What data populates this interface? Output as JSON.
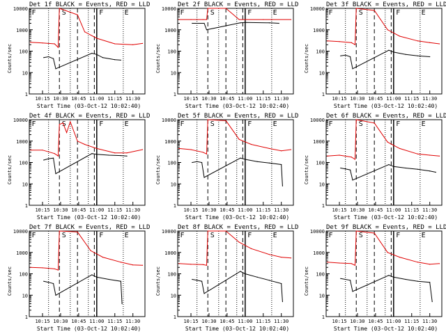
{
  "colors": {
    "events": "#000000",
    "lld": "#e00000",
    "axis": "#000000"
  },
  "chart_data": [
    {
      "type": "line",
      "title": "Det 1f BLACK = Events, RED = LLD",
      "xlabel": "Start Time (03-Oct-12 10:02:40)",
      "ylabel": "Counts/sec",
      "xlim": [
        "10:04",
        "11:40"
      ],
      "ylim": [
        1,
        10000
      ],
      "yscale": "log",
      "x_ticks": [
        "10:15",
        "10:30",
        "10:45",
        "11:00",
        "11:15",
        "11:30"
      ],
      "y_ticks": [
        "1",
        "10",
        "100",
        "1000",
        "10000"
      ],
      "markers": [
        "F",
        "S",
        "F",
        "E"
      ],
      "series": [
        {
          "name": "Events",
          "x": [
            "10:16",
            "10:20",
            "10:24",
            "10:26",
            "10:56",
            "11:00",
            "11:05",
            "11:15",
            "11:20"
          ],
          "values": [
            50,
            55,
            45,
            15,
            80,
            70,
            50,
            40,
            38
          ]
        },
        {
          "name": "LLD",
          "x": [
            "10:05",
            "10:15",
            "10:25",
            "10:28",
            "10:29",
            "10:44",
            "10:50",
            "11:00",
            "11:15",
            "11:30",
            "11:38"
          ],
          "values": [
            260,
            240,
            220,
            150,
            10000,
            5000,
            800,
            400,
            220,
            200,
            230
          ]
        }
      ]
    },
    {
      "type": "line",
      "title": "Det 2f BLACK = Events, RED = LLD",
      "xlabel": "Start Time (03-Oct-12 10:02:40)",
      "ylabel": "Counts/sec",
      "xlim": [
        "10:04",
        "11:40"
      ],
      "ylim": [
        1,
        10000
      ],
      "yscale": "log",
      "x_ticks": [
        "10:15",
        "10:30",
        "10:45",
        "11:00",
        "11:15",
        "11:30"
      ],
      "y_ticks": [
        "1",
        "10",
        "100",
        "1000",
        "10000"
      ],
      "markers": [
        "F",
        "S",
        "F",
        "E"
      ],
      "series": [
        {
          "name": "Events",
          "x": [
            "10:16",
            "10:20",
            "10:26",
            "10:28",
            "10:56",
            "11:00",
            "11:20",
            "11:28"
          ],
          "values": [
            2000,
            2000,
            2000,
            1000,
            2100,
            2200,
            2100,
            2000
          ]
        },
        {
          "name": "LLD",
          "x": [
            "10:05",
            "10:15",
            "10:25",
            "10:28",
            "10:29",
            "10:44",
            "10:55",
            "11:15",
            "11:38"
          ],
          "values": [
            3000,
            3000,
            3000,
            3000,
            10000,
            10000,
            3000,
            3000,
            3000
          ]
        }
      ]
    },
    {
      "type": "line",
      "title": "Det 3f BLACK = Events, RED = LLD",
      "xlabel": "Start Time (03-Oct-12 10:02:40)",
      "ylabel": "Counts/sec",
      "xlim": [
        "10:04",
        "11:40"
      ],
      "ylim": [
        1,
        10000
      ],
      "yscale": "log",
      "x_ticks": [
        "10:15",
        "10:30",
        "10:45",
        "11:00",
        "11:15",
        "11:30"
      ],
      "y_ticks": [
        "1",
        "10",
        "100",
        "1000",
        "10000"
      ],
      "markers": [
        "F",
        "S",
        "F",
        "E"
      ],
      "series": [
        {
          "name": "Events",
          "x": [
            "10:16",
            "10:20",
            "10:24",
            "10:26",
            "10:56",
            "11:00",
            "11:10",
            "11:20",
            "11:30"
          ],
          "values": [
            60,
            65,
            55,
            15,
            110,
            90,
            70,
            60,
            55
          ]
        },
        {
          "name": "LLD",
          "x": [
            "10:05",
            "10:15",
            "10:25",
            "10:28",
            "10:29",
            "10:44",
            "10:55",
            "11:05",
            "11:20",
            "11:30",
            "11:38"
          ],
          "values": [
            300,
            280,
            250,
            200,
            10000,
            8000,
            1000,
            500,
            300,
            250,
            220
          ]
        }
      ]
    },
    {
      "type": "line",
      "title": "Det 4f BLACK = Events, RED = LLD",
      "xlabel": "Start Time (03-Oct-12 10:02:40)",
      "ylabel": "Counts/sec",
      "xlim": [
        "10:04",
        "11:40"
      ],
      "ylim": [
        1,
        10000
      ],
      "yscale": "log",
      "x_ticks": [
        "10:15",
        "10:30",
        "10:45",
        "11:00",
        "11:15",
        "11:30"
      ],
      "y_ticks": [
        "1",
        "10",
        "100",
        "1000",
        "10000"
      ],
      "markers": [
        "F",
        "S",
        "F",
        "E"
      ],
      "series": [
        {
          "name": "Events",
          "x": [
            "10:16",
            "10:20",
            "10:24",
            "10:26",
            "10:56",
            "11:00",
            "11:10",
            "11:20",
            "11:25"
          ],
          "values": [
            130,
            150,
            160,
            30,
            260,
            240,
            220,
            210,
            200
          ]
        },
        {
          "name": "LLD",
          "x": [
            "10:05",
            "10:15",
            "10:25",
            "10:28",
            "10:29",
            "10:32",
            "10:35",
            "10:38",
            "10:44",
            "10:50",
            "11:00",
            "11:15",
            "11:25",
            "11:38"
          ],
          "values": [
            380,
            380,
            260,
            200,
            6000,
            7000,
            2500,
            8000,
            1000,
            700,
            450,
            280,
            280,
            400
          ]
        }
      ]
    },
    {
      "type": "line",
      "title": "Det 5f BLACK = Events, RED = LLD",
      "xlabel": "Start Time (03-Oct-12 10:02:40)",
      "ylabel": "Counts/sec",
      "xlim": [
        "10:04",
        "11:40"
      ],
      "ylim": [
        1,
        10000
      ],
      "yscale": "log",
      "x_ticks": [
        "10:15",
        "10:30",
        "10:45",
        "11:00",
        "11:15",
        "11:30"
      ],
      "y_ticks": [
        "1",
        "10",
        "100",
        "1000",
        "10000"
      ],
      "markers": [
        "F",
        "S",
        "F",
        "E"
      ],
      "series": [
        {
          "name": "Events",
          "x": [
            "10:16",
            "10:20",
            "10:24",
            "10:26",
            "10:56",
            "11:00",
            "11:10",
            "11:20",
            "11:30",
            "11:31"
          ],
          "values": [
            100,
            110,
            100,
            20,
            160,
            140,
            110,
            95,
            80,
            8
          ]
        },
        {
          "name": "LLD",
          "x": [
            "10:05",
            "10:15",
            "10:25",
            "10:28",
            "10:29",
            "10:44",
            "10:55",
            "11:05",
            "11:20",
            "11:30",
            "11:38"
          ],
          "values": [
            450,
            400,
            300,
            250,
            10000,
            9000,
            1200,
            700,
            450,
            350,
            400
          ]
        }
      ]
    },
    {
      "type": "line",
      "title": "Det 6f BLACK = Events, RED = LLD",
      "xlabel": "Start Time (03-Oct-12 10:02:40)",
      "ylabel": "Counts/sec",
      "xlim": [
        "10:04",
        "11:40"
      ],
      "ylim": [
        1,
        10000
      ],
      "yscale": "log",
      "x_ticks": [
        "10:15",
        "10:30",
        "10:45",
        "11:00",
        "11:15",
        "11:30"
      ],
      "y_ticks": [
        "1",
        "10",
        "100",
        "1000",
        "10000"
      ],
      "markers": [
        "F",
        "S",
        "F",
        "E"
      ],
      "series": [
        {
          "name": "Events",
          "x": [
            "10:16",
            "10:20",
            "10:24",
            "10:26",
            "10:56",
            "11:00",
            "11:10",
            "11:20",
            "11:30",
            "11:35"
          ],
          "values": [
            55,
            50,
            45,
            15,
            80,
            65,
            55,
            48,
            40,
            35
          ]
        },
        {
          "name": "LLD",
          "x": [
            "10:05",
            "10:15",
            "10:25",
            "10:28",
            "10:29",
            "10:44",
            "10:55",
            "11:05",
            "11:20",
            "11:30",
            "11:38"
          ],
          "values": [
            200,
            220,
            180,
            140,
            10000,
            7000,
            900,
            450,
            250,
            220,
            200
          ]
        }
      ]
    },
    {
      "type": "line",
      "title": "Det 7f BLACK = Events, RED = LLD",
      "xlabel": "Start Time (03-Oct-12 10:02:40)",
      "ylabel": "Counts/sec",
      "xlim": [
        "10:04",
        "11:40"
      ],
      "ylim": [
        1,
        10000
      ],
      "yscale": "log",
      "x_ticks": [
        "10:15",
        "10:30",
        "10:45",
        "11:00",
        "11:15",
        "11:30"
      ],
      "y_ticks": [
        "1",
        "10",
        "100",
        "1000",
        "10000"
      ],
      "markers": [
        "F",
        "S",
        "F",
        "E"
      ],
      "series": [
        {
          "name": "Events",
          "x": [
            "10:16",
            "10:20",
            "10:24",
            "10:26",
            "10:56",
            "11:00",
            "11:10",
            "11:20",
            "11:21"
          ],
          "values": [
            45,
            40,
            35,
            10,
            90,
            70,
            55,
            45,
            4
          ]
        },
        {
          "name": "LLD",
          "x": [
            "10:05",
            "10:15",
            "10:25",
            "10:28",
            "10:29",
            "10:44",
            "10:55",
            "11:05",
            "11:20",
            "11:30",
            "11:38"
          ],
          "values": [
            200,
            190,
            170,
            150,
            10000,
            9000,
            1200,
            600,
            350,
            260,
            250
          ]
        }
      ]
    },
    {
      "type": "line",
      "title": "Det 8f BLACK = Events, RED = LLD",
      "xlabel": "Start Time (03-Oct-12 10:02:40)",
      "ylabel": "Counts/sec",
      "xlim": [
        "10:04",
        "11:40"
      ],
      "ylim": [
        1,
        10000
      ],
      "yscale": "log",
      "x_ticks": [
        "10:15",
        "10:30",
        "10:45",
        "11:00",
        "11:15",
        "11:30"
      ],
      "y_ticks": [
        "1",
        "10",
        "100",
        "1000",
        "10000"
      ],
      "markers": [
        "F",
        "S",
        "F",
        "E"
      ],
      "series": [
        {
          "name": "Events",
          "x": [
            "10:16",
            "10:20",
            "10:24",
            "10:26",
            "10:56",
            "11:00",
            "11:10",
            "11:20",
            "11:30",
            "11:31"
          ],
          "values": [
            55,
            50,
            45,
            12,
            130,
            100,
            70,
            50,
            35,
            5
          ]
        },
        {
          "name": "LLD",
          "x": [
            "10:05",
            "10:15",
            "10:25",
            "10:28",
            "10:29",
            "10:44",
            "10:55",
            "11:05",
            "11:20",
            "11:30",
            "11:38"
          ],
          "values": [
            300,
            280,
            270,
            250,
            10000,
            10000,
            3000,
            1500,
            800,
            600,
            550
          ]
        }
      ]
    },
    {
      "type": "line",
      "title": "Det 9f BLACK = Events, RED = LLD",
      "xlabel": "Start Time (03-Oct-12 10:02:40)",
      "ylabel": "Counts/sec",
      "xlim": [
        "10:04",
        "11:40"
      ],
      "ylim": [
        1,
        10000
      ],
      "yscale": "log",
      "x_ticks": [
        "10:15",
        "10:30",
        "10:45",
        "11:00",
        "11:15",
        "11:30"
      ],
      "y_ticks": [
        "1",
        "10",
        "100",
        "1000",
        "10000"
      ],
      "markers": [
        "F",
        "S",
        "F",
        "E"
      ],
      "series": [
        {
          "name": "Events",
          "x": [
            "10:16",
            "10:20",
            "10:24",
            "10:26",
            "10:56",
            "11:00",
            "11:10",
            "11:20",
            "11:30",
            "11:32"
          ],
          "values": [
            60,
            55,
            50,
            15,
            85,
            70,
            55,
            45,
            40,
            5
          ]
        },
        {
          "name": "LLD",
          "x": [
            "10:05",
            "10:15",
            "10:25",
            "10:28",
            "10:29",
            "10:44",
            "10:55",
            "11:05",
            "11:20",
            "11:30",
            "11:38"
          ],
          "values": [
            350,
            320,
            300,
            250,
            10000,
            8000,
            1000,
            600,
            350,
            280,
            300
          ]
        }
      ]
    }
  ]
}
